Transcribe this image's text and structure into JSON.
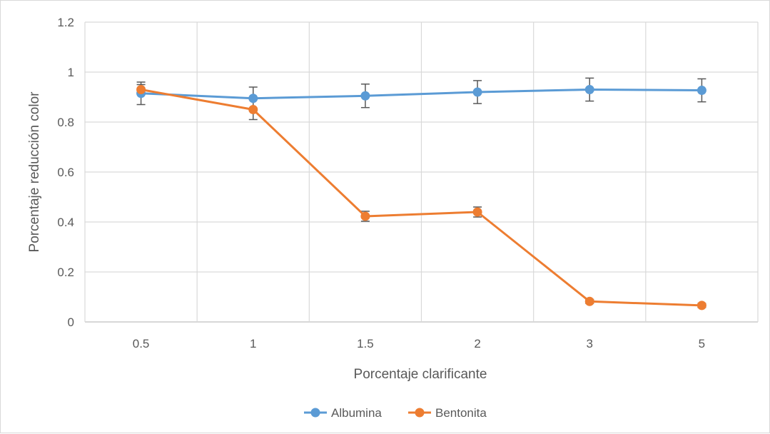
{
  "chart_data": {
    "type": "line",
    "title": "",
    "xlabel": "Porcentaje clarificante",
    "ylabel": "Porcentaje reducción color",
    "categories": [
      "0.5",
      "1",
      "1.5",
      "2",
      "3",
      "5"
    ],
    "ylim": [
      0,
      1.2
    ],
    "yticks": [
      "0",
      "0.2",
      "0.4",
      "0.6",
      "0.8",
      "1",
      "1.2"
    ],
    "grid": true,
    "legend_position": "bottom",
    "series": [
      {
        "name": "Albumina",
        "color": "#5b9bd5",
        "values": [
          0.915,
          0.895,
          0.905,
          0.92,
          0.93,
          0.927
        ],
        "errors": [
          0.045,
          0.045,
          0.047,
          0.046,
          0.046,
          0.046
        ]
      },
      {
        "name": "Bentonita",
        "color": "#ed7d31",
        "values": [
          0.93,
          0.85,
          0.423,
          0.44,
          0.082,
          0.066
        ],
        "errors": [
          0.02,
          0.04,
          0.02,
          0.02,
          0.008,
          0.008
        ]
      }
    ]
  }
}
